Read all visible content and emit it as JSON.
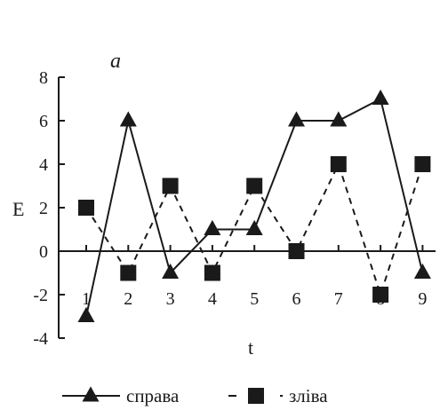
{
  "chart_data": {
    "type": "line",
    "panel_label": "a",
    "xlabel": "t",
    "ylabel": "E",
    "x": [
      1,
      2,
      3,
      4,
      5,
      6,
      7,
      8,
      9
    ],
    "x_tick_labels": [
      "1",
      "2",
      "3",
      "4",
      "5",
      "6",
      "7",
      "8",
      "9"
    ],
    "ylim": [
      -4,
      8
    ],
    "y_ticks": [
      -4,
      -2,
      0,
      2,
      4,
      6,
      8
    ],
    "y_tick_labels": [
      "-4",
      "-2",
      "0",
      "2",
      "4",
      "6",
      "8"
    ],
    "grid": false,
    "legend_position": "bottom",
    "series": [
      {
        "name": "справа",
        "values": [
          -3,
          6,
          -1,
          1,
          1,
          6,
          6,
          7,
          -1
        ],
        "marker": "triangle",
        "line_style": "solid",
        "color": "#1a1a1a"
      },
      {
        "name": "зліва",
        "values": [
          2,
          -1,
          3,
          -1,
          3,
          0,
          4,
          -2,
          4
        ],
        "marker": "square",
        "line_style": "dashed",
        "color": "#1a1a1a"
      }
    ]
  }
}
